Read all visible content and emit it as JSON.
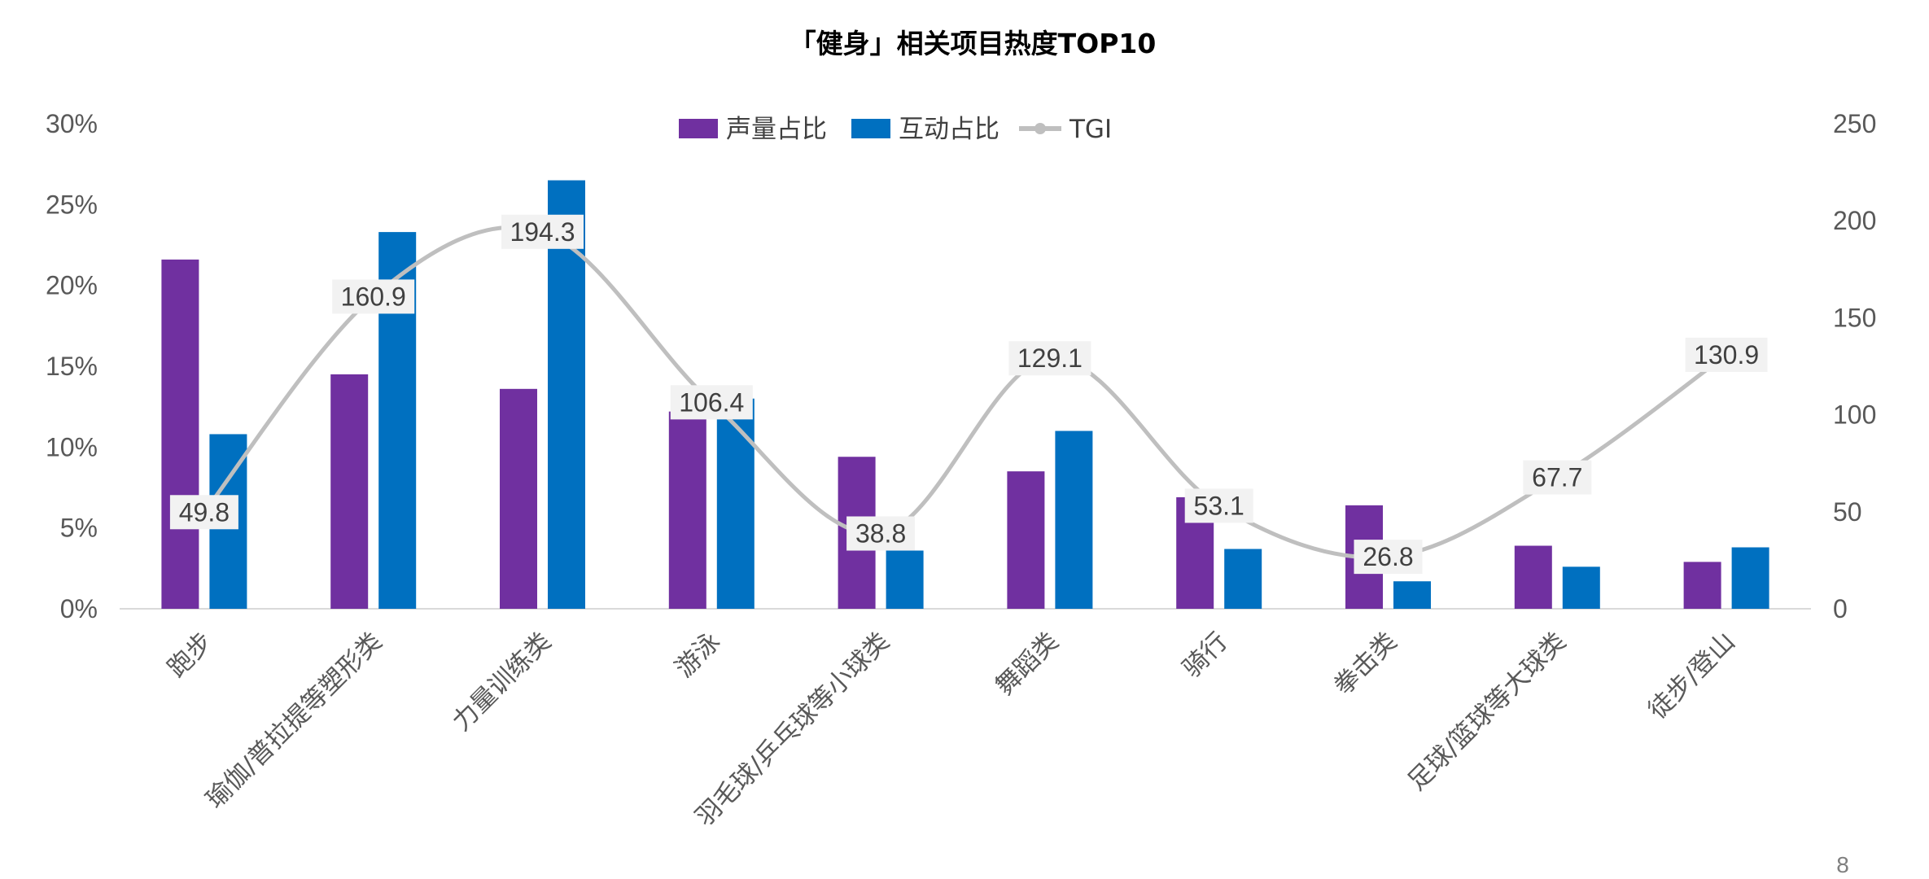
{
  "page_number": "8",
  "chart_data": {
    "type": "bar",
    "title": "「健身」相关项目热度TOP10",
    "categories": [
      "跑步",
      "瑜伽/普拉提等塑形类",
      "力量训练类",
      "游泳",
      "羽毛球/乒乓球等小球类",
      "舞蹈类",
      "骑行",
      "拳击类",
      "足球/篮球等大球类",
      "徒步/登山"
    ],
    "series": [
      {
        "name": "声量占比",
        "type": "bar",
        "axis": "left",
        "color": "#7030A0",
        "values": [
          21.6,
          14.5,
          13.6,
          12.2,
          9.4,
          8.5,
          6.9,
          6.4,
          3.9,
          2.9
        ]
      },
      {
        "name": "互动占比",
        "type": "bar",
        "axis": "left",
        "color": "#0070C0",
        "values": [
          10.8,
          23.3,
          26.5,
          13.0,
          3.6,
          11.0,
          3.7,
          1.7,
          2.6,
          3.8
        ]
      },
      {
        "name": "TGI",
        "type": "line",
        "axis": "right",
        "color": "#BFBFBF",
        "values": [
          49.8,
          160.9,
          194.3,
          106.4,
          38.8,
          129.1,
          53.1,
          26.8,
          67.7,
          130.9
        ],
        "labels": [
          "49.8",
          "160.9",
          "194.3",
          "106.4",
          "38.8",
          "129.1",
          "53.1",
          "26.8",
          "67.7",
          "130.9"
        ]
      }
    ],
    "y_left": {
      "ticks": [
        "0%",
        "5%",
        "10%",
        "15%",
        "20%",
        "25%",
        "30%"
      ],
      "range": [
        0,
        30
      ]
    },
    "y_right": {
      "ticks": [
        "0",
        "50",
        "100",
        "150",
        "200",
        "250"
      ],
      "range": [
        0,
        250
      ]
    },
    "grid": false,
    "legend_position": "top-center"
  }
}
